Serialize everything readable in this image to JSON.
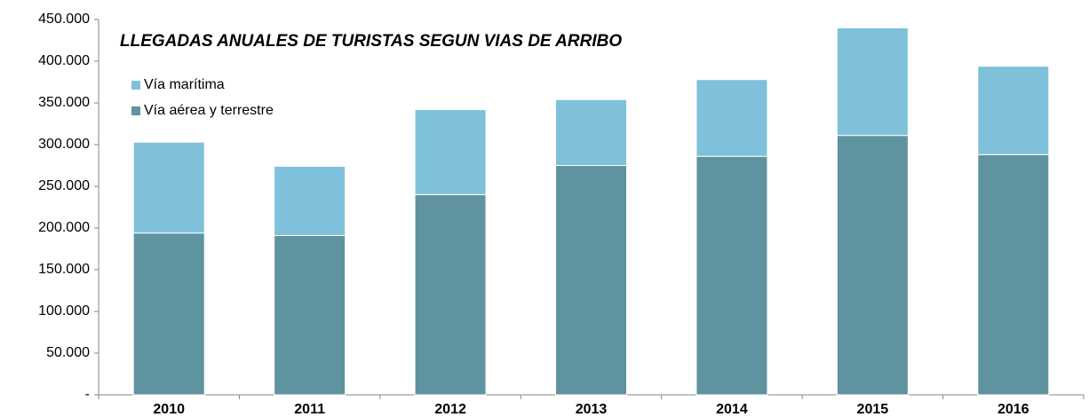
{
  "chart_data": {
    "type": "stacked_bar",
    "title": "LLEGADAS ANUALES DE TURISTAS SEGUN VIAS DE ARRIBO",
    "categories": [
      "2010",
      "2011",
      "2012",
      "2013",
      "2014",
      "2015",
      "2016"
    ],
    "series": [
      {
        "name": "Vía aérea y terrestre",
        "color": "#5f939f",
        "values": [
          194000,
          191000,
          240000,
          275000,
          286000,
          311000,
          288000
        ]
      },
      {
        "name": "Vía marítima",
        "color": "#7fc1da",
        "values": [
          109000,
          83000,
          102000,
          79000,
          92000,
          129000,
          106000
        ]
      }
    ],
    "ylim": [
      0,
      450000
    ],
    "yticks": [
      {
        "value": 0,
        "label": "-"
      },
      {
        "value": 50000,
        "label": "50.000"
      },
      {
        "value": 100000,
        "label": "100.000"
      },
      {
        "value": 150000,
        "label": "150.000"
      },
      {
        "value": 200000,
        "label": "200.000"
      },
      {
        "value": 250000,
        "label": "250.000"
      },
      {
        "value": 300000,
        "label": "300.000"
      },
      {
        "value": 350000,
        "label": "350.000"
      },
      {
        "value": 400000,
        "label": "400.000"
      },
      {
        "value": 450000,
        "label": "450.000"
      }
    ],
    "legend": "top-left",
    "grid": false
  }
}
